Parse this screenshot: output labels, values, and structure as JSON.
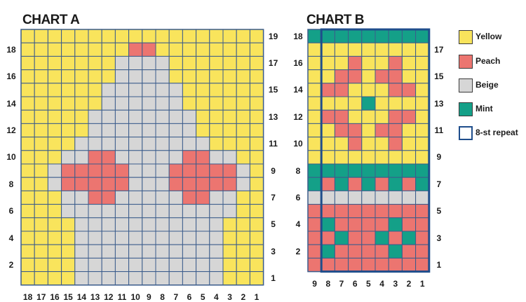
{
  "chart_a": {
    "title": "CHART A",
    "rows": 19,
    "cols": 18,
    "row_labels_left": [
      "2",
      "4",
      "6",
      "8",
      "10",
      "12",
      "14",
      "16",
      "18"
    ],
    "row_labels_right": [
      "1",
      "3",
      "5",
      "7",
      "9",
      "11",
      "13",
      "15",
      "17",
      "19"
    ],
    "col_labels": [
      "18",
      "17",
      "16",
      "15",
      "14",
      "13",
      "12",
      "11",
      "10",
      "9",
      "8",
      "7",
      "6",
      "5",
      "4",
      "3",
      "2",
      "1"
    ],
    "grid": [
      "YYYYYYYYYYYYYYYYYY",
      "YYYYYYYYPPYYYYYYYY",
      "YYYYYYYBBBBYYYYYYY",
      "YYYYYYYBBBBYYYYYYY",
      "YYYYYYBBBBBBYYYYYY",
      "YYYYYYBBBBBBYYYYYY",
      "YYYYYBBBBBBBBYYYYY",
      "YYYYYBBBBBBBBYYYYY",
      "YYYYBBBBBBBBBBYYYY",
      "YYYBBPPBBBBBPPBBYY",
      "YYBPPPPPBBBPPPPPBY",
      "YYBPPPPPBBBPPPPPBY",
      "YYYBBPPBBBBBPPBBYY",
      "YYYBBBBBBBBBBBBBYY",
      "YYYYBBBBBBBBBBBYYY",
      "YYYYBBBBBBBBBBBYYY",
      "YYYYBBBBBBBBBBBYYY",
      "YYYYBBBBBBBBBBBYYY",
      "YYYYBBBBBBBBBBBYYY"
    ]
  },
  "chart_b": {
    "title": "CHART B",
    "rows": 18,
    "cols": 9,
    "row_labels_left": [
      "2",
      "4",
      "6",
      "8",
      "10",
      "12",
      "14",
      "16",
      "18"
    ],
    "row_labels_right": [
      "1",
      "3",
      "5",
      "7",
      "9",
      "11",
      "13",
      "15",
      "17"
    ],
    "col_labels": [
      "9",
      "8",
      "7",
      "6",
      "5",
      "4",
      "3",
      "2",
      "1"
    ],
    "grid": [
      "MMMMMMMMM",
      "YYYYYYYYY",
      "YYYPYYPYY",
      "YYPPYPPYY",
      "YPPYYYPPY",
      "YYYYMYYYY",
      "YPPYYYPPY",
      "YYPPYPPYY",
      "YYYPYYPYY",
      "YYYYYYYYY",
      "MMMMMMMMM",
      "MPMPMPMPM",
      "BBBBBBBBB",
      "PPPPPPPPP",
      "PMPPPPMPP",
      "PPMPPMPMP",
      "PMPPPPMPP",
      "PPPPPPPPP"
    ]
  },
  "legend": [
    {
      "key": "Y",
      "label": "Yellow",
      "color": "#f9e45c"
    },
    {
      "key": "P",
      "label": "Peach",
      "color": "#ec7570"
    },
    {
      "key": "B",
      "label": "Beige",
      "color": "#d6d6d6"
    },
    {
      "key": "M",
      "label": "Mint",
      "color": "#14a088"
    },
    {
      "key": "R",
      "label": "8-st repeat",
      "color": "#1f4e8c"
    }
  ],
  "colors": {
    "Y": "#f9e45c",
    "P": "#ec7570",
    "B": "#d6d6d6",
    "M": "#14a088",
    "grid_line": "#3b5c8c",
    "repeat_border": "#1f4e8c"
  }
}
